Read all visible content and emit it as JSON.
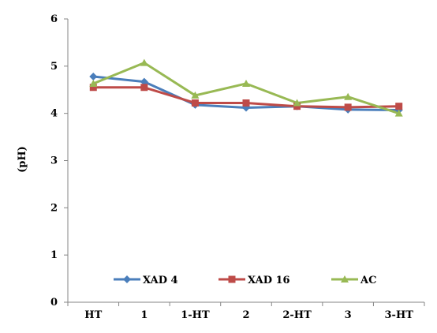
{
  "chart_data": {
    "type": "line",
    "title": "",
    "xlabel": "",
    "ylabel": "(pH)",
    "categories": [
      "HT",
      "1",
      "1-HT",
      "2",
      "2-HT",
      "3",
      "3-HT"
    ],
    "ylim": [
      0,
      6
    ],
    "yticks": [
      0,
      1,
      2,
      3,
      4,
      5,
      6
    ],
    "grid": false,
    "legend_position": "bottom-inside",
    "series": [
      {
        "name": "XAD 4",
        "color": "#4a7ebb",
        "marker": "diamond",
        "values": [
          4.78,
          4.67,
          4.18,
          4.12,
          4.15,
          4.08,
          4.07
        ]
      },
      {
        "name": "XAD 16",
        "color": "#be4b48",
        "marker": "square",
        "values": [
          4.55,
          4.55,
          4.22,
          4.22,
          4.15,
          4.13,
          4.15
        ]
      },
      {
        "name": "AC",
        "color": "#98b954",
        "marker": "triangle",
        "values": [
          4.63,
          5.07,
          4.38,
          4.63,
          4.22,
          4.35,
          4.0
        ]
      }
    ]
  }
}
